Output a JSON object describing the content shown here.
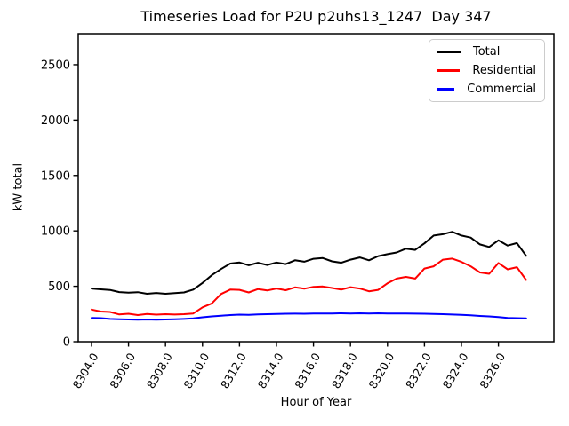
{
  "chart_data": {
    "type": "line",
    "title": "Timeseries Load for P2U p2uhs13_1247  Day 347",
    "xlabel": "Hour of Year",
    "ylabel": "kW total",
    "xlim": [
      8303.28,
      8329.0
    ],
    "ylim": [
      0,
      2780
    ],
    "xticks": [
      8304,
      8306,
      8308,
      8310,
      8312,
      8314,
      8316,
      8318,
      8320,
      8322,
      8324,
      8326
    ],
    "xtick_labels": [
      "8304.0",
      "8306.0",
      "8308.0",
      "8310.0",
      "8312.0",
      "8314.0",
      "8316.0",
      "8318.0",
      "8320.0",
      "8322.0",
      "8324.0",
      "8326.0"
    ],
    "yticks": [
      0,
      500,
      1000,
      1500,
      2000,
      2500
    ],
    "ytick_labels": [
      "0",
      "500",
      "1000",
      "1500",
      "2000",
      "2500"
    ],
    "grid": false,
    "legend_position": "upper right",
    "background": "#ffffff",
    "x": [
      8304.0,
      8304.5,
      8305.0,
      8305.5,
      8306.0,
      8306.5,
      8307.0,
      8307.5,
      8308.0,
      8308.5,
      8309.0,
      8309.5,
      8310.0,
      8310.5,
      8311.0,
      8311.5,
      8312.0,
      8312.5,
      8313.0,
      8313.5,
      8314.0,
      8314.5,
      8315.0,
      8315.5,
      8316.0,
      8316.5,
      8317.0,
      8317.5,
      8318.0,
      8318.5,
      8319.0,
      8319.5,
      8320.0,
      8320.5,
      8321.0,
      8321.5,
      8322.0,
      8322.5,
      8323.0,
      8323.5,
      8324.0,
      8324.5,
      8325.0,
      8325.5,
      8326.0,
      8326.5,
      8327.0,
      8327.5
    ],
    "series": [
      {
        "name": "Total",
        "color": "#000000",
        "values": [
          480,
          473,
          467,
          448,
          442,
          447,
          433,
          440,
          433,
          438,
          445,
          470,
          530,
          600,
          655,
          705,
          715,
          690,
          712,
          692,
          715,
          700,
          735,
          722,
          748,
          755,
          725,
          712,
          740,
          760,
          735,
          772,
          790,
          805,
          840,
          828,
          888,
          958,
          970,
          992,
          958,
          940,
          878,
          855,
          915,
          868,
          890,
          775
        ]
      },
      {
        "name": "Residential",
        "color": "#ff0000",
        "values": [
          290,
          272,
          268,
          246,
          252,
          240,
          250,
          244,
          248,
          245,
          248,
          255,
          310,
          345,
          430,
          470,
          468,
          445,
          475,
          462,
          480,
          465,
          490,
          478,
          495,
          498,
          485,
          470,
          492,
          480,
          455,
          468,
          527,
          570,
          585,
          570,
          660,
          680,
          740,
          750,
          720,
          680,
          625,
          613,
          710,
          653,
          672,
          557
        ]
      },
      {
        "name": "Commercial",
        "color": "#0000ff",
        "values": [
          215,
          212,
          205,
          202,
          200,
          198,
          200,
          198,
          200,
          202,
          205,
          210,
          220,
          228,
          235,
          240,
          244,
          243,
          246,
          248,
          250,
          252,
          253,
          252,
          254,
          255,
          255,
          256,
          255,
          256,
          255,
          256,
          255,
          254,
          255,
          253,
          252,
          250,
          248,
          245,
          242,
          238,
          232,
          228,
          222,
          215,
          212,
          210
        ]
      }
    ]
  }
}
